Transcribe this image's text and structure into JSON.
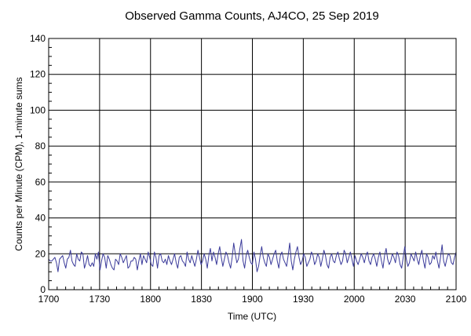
{
  "chart_data": {
    "type": "line",
    "title": "Observed Gamma Counts, AJ4CO, 25 Sep 2019",
    "xlabel": "Time (UTC)",
    "ylabel": "Counts per Minute (CPM), 1-minute sums",
    "x_ticks": [
      "1700",
      "1730",
      "1800",
      "1830",
      "1900",
      "1930",
      "2000",
      "2030",
      "2100"
    ],
    "y_ticks": [
      "0",
      "20",
      "40",
      "60",
      "80",
      "100",
      "120",
      "140"
    ],
    "xlim": [
      "17:00",
      "21:00"
    ],
    "ylim": [
      0,
      140
    ],
    "grid": true,
    "x_start": "17:00",
    "x_step_minutes": 1,
    "series": [
      {
        "color": "#3a3a9a",
        "values": [
          17,
          16,
          16,
          17,
          18,
          15,
          10,
          17,
          18,
          19,
          15,
          12,
          17,
          18,
          22,
          16,
          14,
          13,
          20,
          17,
          16,
          21,
          20,
          12,
          15,
          19,
          14,
          13,
          15,
          13,
          20,
          17,
          21,
          11,
          16,
          20,
          18,
          12,
          19,
          17,
          14,
          12,
          11,
          17,
          16,
          14,
          20,
          18,
          15,
          17,
          19,
          12,
          13,
          16,
          16,
          18,
          17,
          11,
          16,
          20,
          14,
          19,
          17,
          15,
          21,
          18,
          14,
          13,
          21,
          18,
          12,
          19,
          20,
          16,
          15,
          17,
          14,
          19,
          16,
          14,
          17,
          20,
          15,
          12,
          18,
          19,
          16,
          15,
          13,
          21,
          17,
          15,
          19,
          16,
          13,
          17,
          22,
          18,
          14,
          16,
          20,
          17,
          12,
          19,
          23,
          16,
          21,
          18,
          14,
          20,
          24,
          18,
          13,
          17,
          21,
          19,
          15,
          12,
          18,
          26,
          20,
          15,
          17,
          23,
          28,
          16,
          12,
          19,
          22,
          18,
          15,
          14,
          21,
          17,
          10,
          13,
          19,
          24,
          18,
          15,
          13,
          20,
          18,
          14,
          17,
          20,
          22,
          16,
          12,
          19,
          21,
          17,
          15,
          13,
          19,
          26,
          16,
          11,
          17,
          21,
          24,
          18,
          14,
          16,
          20,
          18,
          13,
          15,
          17,
          21,
          19,
          14,
          16,
          20,
          18,
          13,
          17,
          22,
          19,
          14,
          12,
          18,
          20,
          16,
          15,
          19,
          21,
          17,
          14,
          16,
          22,
          20,
          15,
          18,
          21,
          17,
          13,
          19,
          16,
          14,
          17,
          20,
          18,
          15,
          19,
          21,
          16,
          14,
          18,
          20,
          17,
          13,
          18,
          21,
          16,
          12,
          19,
          23,
          17,
          14,
          16,
          20,
          18,
          15,
          21,
          19,
          14,
          12,
          18,
          24,
          17,
          13,
          15,
          20,
          18,
          16,
          21,
          17,
          14,
          19,
          22,
          16,
          12,
          20,
          18,
          14,
          15,
          19,
          17,
          21,
          16,
          12,
          18,
          25,
          16,
          13,
          17,
          20,
          19,
          15,
          14,
          18,
          21
        ]
      }
    ]
  }
}
